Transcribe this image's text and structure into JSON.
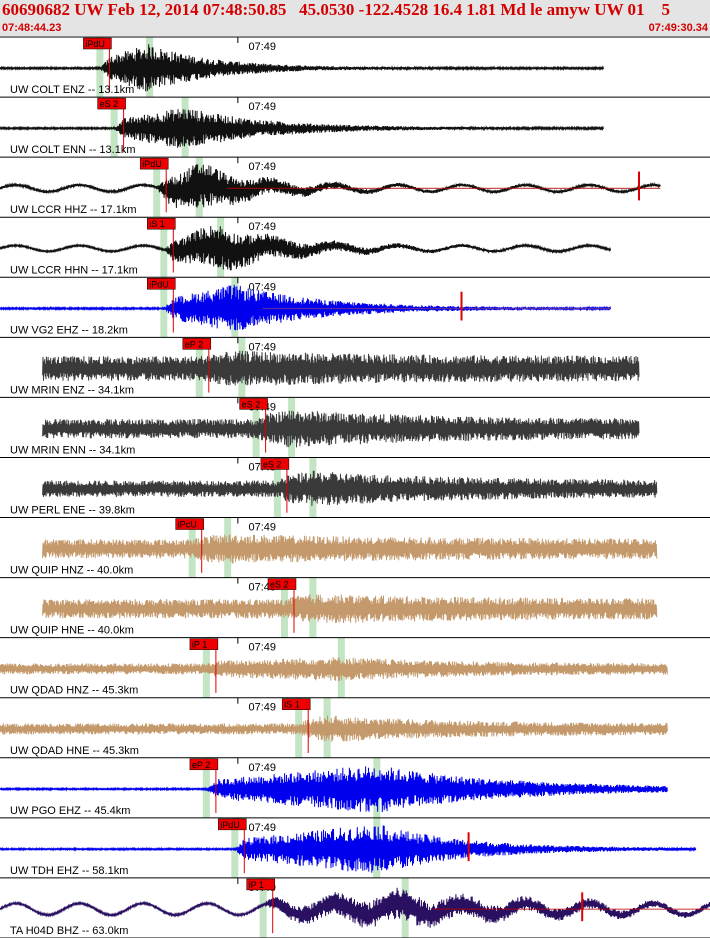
{
  "header": {
    "title": "60690682 UW Feb 12, 2014 07:48:50.85   45.0530 -122.4528 16.4 1.81 Md le amyw UW 01    5",
    "start_time": "07:48:44.23",
    "end_time": "07:49:30.34"
  },
  "colors": {
    "header_bg": "#e4e4e4",
    "header_text": "#d40000",
    "pick_box": "#ee0000",
    "pick_window": "#b8e0b8",
    "trace_black": "#111111",
    "trace_gray": "#3a3a3a",
    "trace_tan": "#c49a6c",
    "trace_blue": "#0000ee",
    "trace_purple": "#2a1060"
  },
  "chart_data": {
    "type": "line",
    "title": "60690682 UW Feb 12, 2014 07:48:50.85   45.0530 -122.4528 16.4 1.81 Md le amyw UW 01    5",
    "x_range": [
      "07:48:44.23",
      "07:49:30.34"
    ],
    "time_ticks": [
      "07:49"
    ],
    "series": [
      {
        "name": "UW COLT ENZ -- 13.1km",
        "color": "#111111",
        "pick": "iPdU",
        "noise": 0.03,
        "peak": 0.85,
        "onset": 0.14,
        "burst": 0.21,
        "decay": 0.09,
        "long_period": 0,
        "trace_end": 0.85
      },
      {
        "name": "UW COLT ENN -- 13.1km",
        "color": "#111111",
        "pick": "eS 2",
        "noise": 0.03,
        "peak": 0.75,
        "onset": 0.16,
        "burst": 0.26,
        "decay": 0.11,
        "long_period": 0,
        "trace_end": 0.85
      },
      {
        "name": "UW LCCR HHZ -- 17.1km",
        "color": "#111111",
        "pick": "iPdU",
        "noise": 0.05,
        "peak": 0.85,
        "onset": 0.22,
        "burst": 0.28,
        "decay": 0.08,
        "long_period": 0.35,
        "trace_end": 0.93,
        "overlay": "#bb0000",
        "spike": 0.9
      },
      {
        "name": "UW LCCR HHN -- 17.1km",
        "color": "#111111",
        "pick": "iS 1",
        "noise": 0.03,
        "peak": 0.8,
        "onset": 0.23,
        "burst": 0.31,
        "decay": 0.1,
        "long_period": 0.3,
        "trace_end": 0.86
      },
      {
        "name": "UW VG2 EHZ -- 18.2km",
        "color": "#0000ee",
        "pick": "iPdU",
        "noise": 0.03,
        "peak": 0.85,
        "onset": 0.23,
        "burst": 0.33,
        "decay": 0.12,
        "long_period": 0,
        "trace_end": 0.86,
        "overlay": "#7a3a8a",
        "spike": 0.65
      },
      {
        "name": "UW MRIN ENZ -- 34.1km",
        "color": "#3a3a3a",
        "pick": "eP 2",
        "noise": 0.45,
        "peak": 0.2,
        "onset": 0.28,
        "burst": 0.34,
        "decay": 0.2,
        "long_period": 0,
        "trace_end": 0.9
      },
      {
        "name": "UW MRIN ENN -- 34.1km",
        "color": "#3a3a3a",
        "pick": "eS 2",
        "noise": 0.35,
        "peak": 0.35,
        "onset": 0.36,
        "burst": 0.41,
        "decay": 0.2,
        "long_period": 0,
        "trace_end": 0.9
      },
      {
        "name": "UW PERL ENE -- 39.8km",
        "color": "#3a3a3a",
        "pick": "eS 2",
        "noise": 0.3,
        "peak": 0.35,
        "onset": 0.39,
        "burst": 0.44,
        "decay": 0.2,
        "long_period": 0,
        "trace_end": 0.925
      },
      {
        "name": "UW QUIP HNZ -- 40.0km",
        "color": "#c49a6c",
        "pick": "iPcU",
        "noise": 0.35,
        "peak": 0.2,
        "onset": 0.27,
        "burst": 0.32,
        "decay": 0.25,
        "long_period": 0,
        "trace_end": 0.925
      },
      {
        "name": "UW QUIP HNE -- 40.0km",
        "color": "#c49a6c",
        "pick": "eS 2",
        "noise": 0.35,
        "peak": 0.2,
        "onset": 0.4,
        "burst": 0.44,
        "decay": 0.25,
        "long_period": 0,
        "trace_end": 0.925
      },
      {
        "name": "UW QDAD HNZ -- 45.3km",
        "color": "#c49a6c",
        "pick": "iP 1",
        "noise": 0.2,
        "peak": 0.25,
        "onset": 0.29,
        "burst": 0.48,
        "decay": 0.15,
        "long_period": 0,
        "trace_end": 0.94
      },
      {
        "name": "UW QDAD HNE -- 45.3km",
        "color": "#c49a6c",
        "pick": "iS 1",
        "noise": 0.2,
        "peak": 0.3,
        "onset": 0.42,
        "burst": 0.46,
        "decay": 0.18,
        "long_period": 0,
        "trace_end": 0.94
      },
      {
        "name": "UW PGO EHZ -- 45.4km",
        "color": "#0000ee",
        "pick": "eP 2",
        "noise": 0.03,
        "peak": 0.85,
        "onset": 0.29,
        "burst": 0.53,
        "decay": 0.18,
        "long_period": 0,
        "trace_end": 0.94
      },
      {
        "name": "UW TDH EHZ -- 58.1km",
        "color": "#0000ee",
        "pick": "iPdU",
        "noise": 0.03,
        "peak": 0.9,
        "onset": 0.33,
        "burst": 0.53,
        "decay": 0.12,
        "long_period": 0,
        "trace_end": 0.98,
        "spike": 0.66
      },
      {
        "name": "TA H04D BHZ -- 63.0km",
        "color": "#2a1060",
        "pick": "iP 1",
        "noise": 0.04,
        "peak": 0.55,
        "onset": 0.37,
        "burst": 0.57,
        "decay": 0.2,
        "long_period": 0.6,
        "trace_end": 1.0,
        "overlay": "#bb0000",
        "spike": 0.82
      }
    ]
  }
}
